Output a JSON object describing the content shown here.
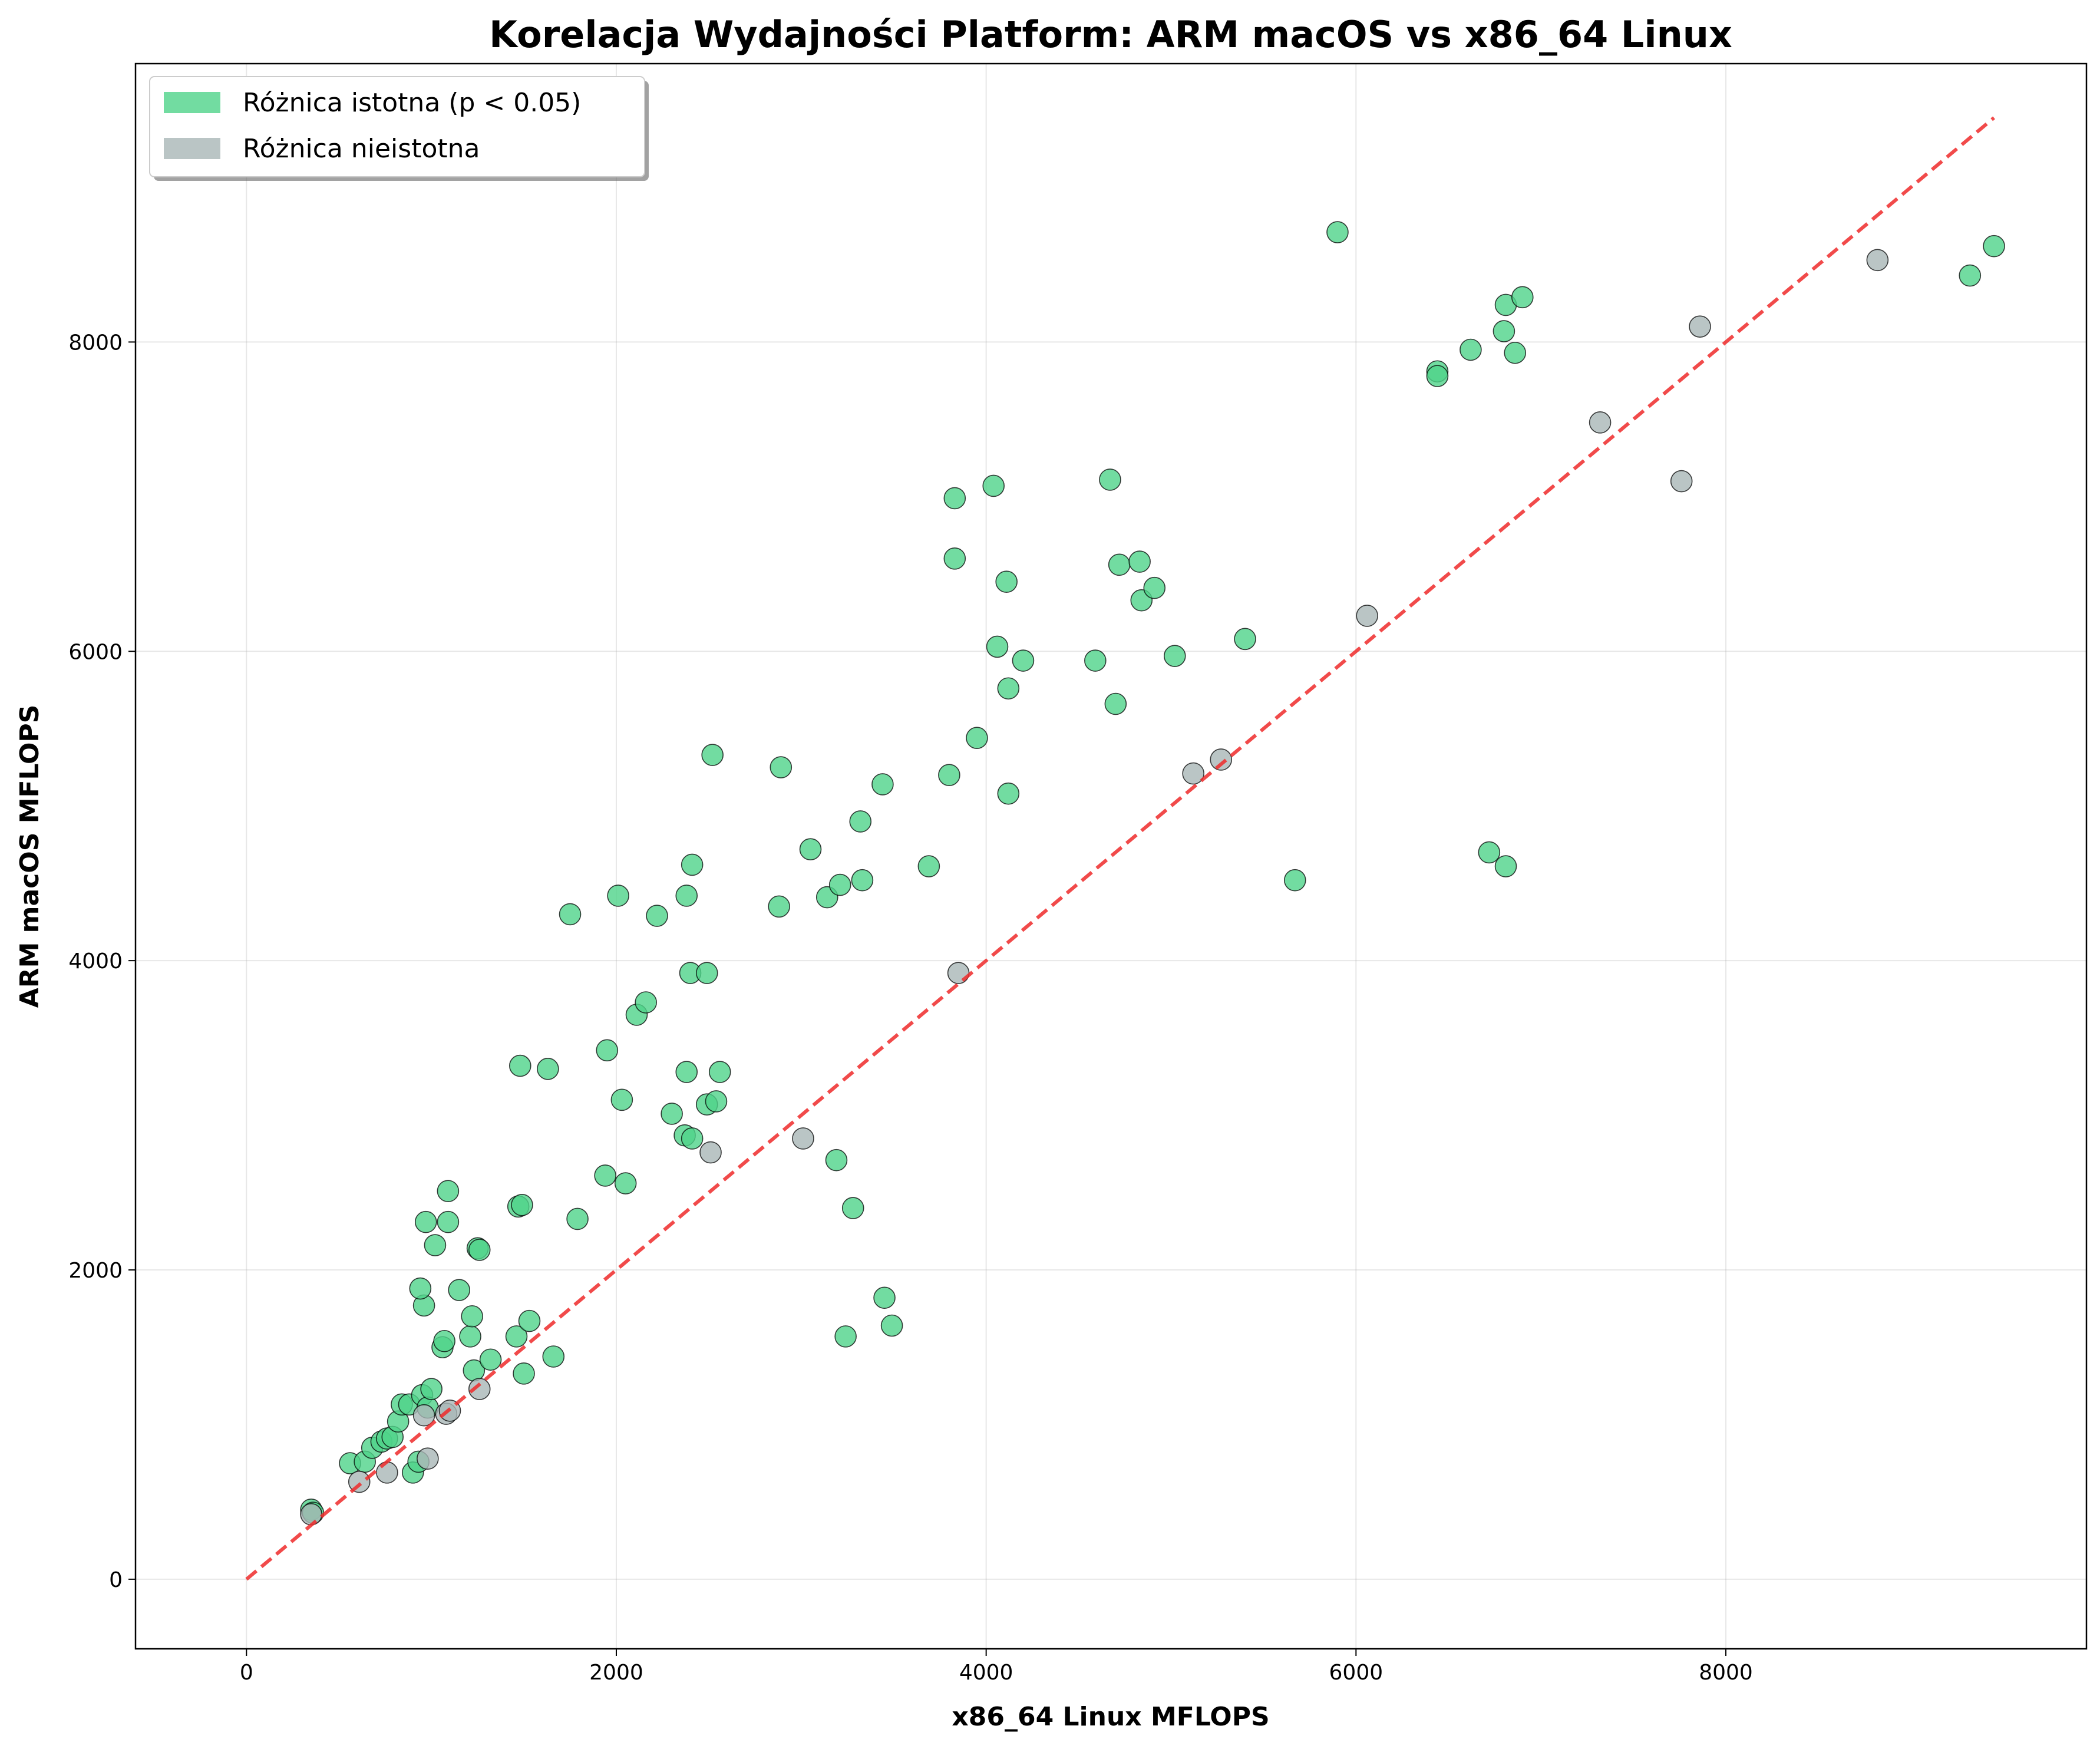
{
  "chart_data": {
    "type": "scatter",
    "title": "Korelacja Wydajności Platform: ARM macOS vs x86_64 Linux",
    "xlabel": "x86_64 Linux MFLOPS",
    "ylabel": "ARM macOS MFLOPS",
    "xlim": [
      -600,
      9950
    ],
    "ylim": [
      -450,
      9800
    ],
    "xticks": [
      0,
      2000,
      4000,
      6000,
      8000
    ],
    "yticks": [
      0,
      2000,
      4000,
      6000,
      8000
    ],
    "grid": true,
    "legend": "top-left",
    "reference_line": {
      "style": "dashed",
      "color": "#ee2a2a",
      "from": [
        0,
        0
      ],
      "to": [
        9450,
        9450
      ]
    },
    "colors": {
      "significant": "#4fd38a",
      "not_significant": "#a9b6b6"
    },
    "series": [
      {
        "name": "Różnica istotna (p < 0.05)",
        "points": [
          [
            350,
            450
          ],
          [
            360,
            430
          ],
          [
            560,
            750
          ],
          [
            640,
            760
          ],
          [
            680,
            850
          ],
          [
            730,
            890
          ],
          [
            760,
            910
          ],
          [
            790,
            920
          ],
          [
            820,
            1020
          ],
          [
            840,
            1130
          ],
          [
            880,
            1130
          ],
          [
            900,
            690
          ],
          [
            930,
            760
          ],
          [
            950,
            1190
          ],
          [
            960,
            1770
          ],
          [
            940,
            1880
          ],
          [
            980,
            1110
          ],
          [
            1000,
            1230
          ],
          [
            970,
            2310
          ],
          [
            1020,
            2160
          ],
          [
            1060,
            1500
          ],
          [
            1070,
            1540
          ],
          [
            1090,
            2310
          ],
          [
            1090,
            2510
          ],
          [
            1150,
            1870
          ],
          [
            1210,
            1570
          ],
          [
            1220,
            1700
          ],
          [
            1230,
            1350
          ],
          [
            1250,
            2140
          ],
          [
            1260,
            2130
          ],
          [
            1320,
            1420
          ],
          [
            1460,
            1570
          ],
          [
            1470,
            2410
          ],
          [
            1490,
            2420
          ],
          [
            1480,
            3320
          ],
          [
            1500,
            1330
          ],
          [
            1530,
            1670
          ],
          [
            1630,
            3300
          ],
          [
            1660,
            1440
          ],
          [
            1750,
            4300
          ],
          [
            1790,
            2330
          ],
          [
            1940,
            2610
          ],
          [
            1950,
            3420
          ],
          [
            2010,
            4420
          ],
          [
            2030,
            3100
          ],
          [
            2050,
            2560
          ],
          [
            2110,
            3650
          ],
          [
            2160,
            3730
          ],
          [
            2220,
            4290
          ],
          [
            2300,
            3010
          ],
          [
            2370,
            2870
          ],
          [
            2380,
            3280
          ],
          [
            2380,
            4420
          ],
          [
            2400,
            3920
          ],
          [
            2410,
            4620
          ],
          [
            2410,
            2850
          ],
          [
            2490,
            3070
          ],
          [
            2490,
            3920
          ],
          [
            2520,
            5330
          ],
          [
            2540,
            3090
          ],
          [
            2560,
            3280
          ],
          [
            2880,
            4350
          ],
          [
            2890,
            5250
          ],
          [
            3050,
            4720
          ],
          [
            3140,
            4410
          ],
          [
            3190,
            2710
          ],
          [
            3210,
            4490
          ],
          [
            3240,
            1570
          ],
          [
            3280,
            2400
          ],
          [
            3320,
            4900
          ],
          [
            3330,
            4520
          ],
          [
            3440,
            5140
          ],
          [
            3450,
            1820
          ],
          [
            3490,
            1640
          ],
          [
            3690,
            4610
          ],
          [
            3800,
            5200
          ],
          [
            3830,
            6600
          ],
          [
            3830,
            6990
          ],
          [
            3950,
            5440
          ],
          [
            4040,
            7070
          ],
          [
            4060,
            6030
          ],
          [
            4110,
            6450
          ],
          [
            4120,
            5760
          ],
          [
            4120,
            5080
          ],
          [
            4200,
            5940
          ],
          [
            4590,
            5940
          ],
          [
            4670,
            7110
          ],
          [
            4700,
            5660
          ],
          [
            4720,
            6560
          ],
          [
            4830,
            6580
          ],
          [
            4840,
            6330
          ],
          [
            4910,
            6410
          ],
          [
            5020,
            5970
          ],
          [
            5400,
            6080
          ],
          [
            5670,
            4520
          ],
          [
            5900,
            8710
          ],
          [
            6440,
            7810
          ],
          [
            6440,
            7780
          ],
          [
            6620,
            7950
          ],
          [
            6720,
            4700
          ],
          [
            6800,
            8070
          ],
          [
            6810,
            8240
          ],
          [
            6810,
            4610
          ],
          [
            6860,
            7930
          ],
          [
            6900,
            8290
          ],
          [
            9320,
            8430
          ],
          [
            9450,
            8620
          ]
        ]
      },
      {
        "name": "Różnica nieistotna",
        "points": [
          [
            350,
            420
          ],
          [
            610,
            630
          ],
          [
            760,
            690
          ],
          [
            960,
            1060
          ],
          [
            980,
            780
          ],
          [
            1080,
            1070
          ],
          [
            1100,
            1090
          ],
          [
            1260,
            1230
          ],
          [
            2510,
            2760
          ],
          [
            3010,
            2850
          ],
          [
            3850,
            3920
          ],
          [
            5120,
            5210
          ],
          [
            5270,
            5300
          ],
          [
            6060,
            6230
          ],
          [
            7320,
            7480
          ],
          [
            7760,
            7100
          ],
          [
            7860,
            8100
          ],
          [
            8820,
            8530
          ]
        ]
      }
    ]
  }
}
